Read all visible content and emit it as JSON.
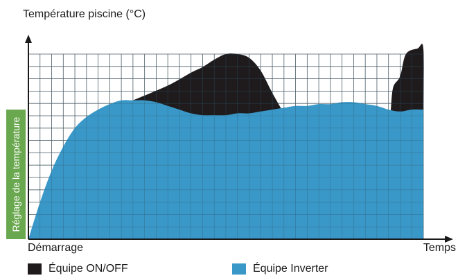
{
  "chart_data": {
    "type": "area",
    "title": "Température piscine (°C)",
    "ylabel": "",
    "xlabel": "Temps",
    "x_start_label": "Démarrage",
    "setpoint_label": "Réglage de la température",
    "grid": true,
    "legend_placement": "bottom",
    "series": [
      {
        "name": "Équipe ON/OFF",
        "color": "#1f1b1c",
        "segments": [
          [
            [
              9,
              0.75
            ],
            [
              12,
              0.83
            ],
            [
              14,
              0.9
            ],
            [
              15,
              0.93
            ],
            [
              16,
              0.97
            ],
            [
              17,
              1.0
            ],
            [
              18,
              1.0
            ],
            [
              19,
              0.98
            ],
            [
              20,
              0.91
            ],
            [
              21,
              0.79
            ],
            [
              22,
              0.68
            ]
          ],
          [
            [
              31.2,
              0.7
            ],
            [
              31.4,
              0.82
            ],
            [
              32,
              0.88
            ],
            [
              32.5,
              1.0
            ],
            [
              33.5,
              1.03
            ],
            [
              34,
              1.03
            ],
            [
              34,
              0.7
            ]
          ]
        ]
      },
      {
        "name": "Équipe Inverter",
        "color": "#3a98c8",
        "points": [
          [
            0,
            0
          ],
          [
            1,
            0.2
          ],
          [
            2,
            0.37
          ],
          [
            3,
            0.5
          ],
          [
            4,
            0.6
          ],
          [
            5,
            0.66
          ],
          [
            6,
            0.7
          ],
          [
            7,
            0.73
          ],
          [
            8,
            0.75
          ],
          [
            9,
            0.75
          ],
          [
            10,
            0.75
          ],
          [
            11,
            0.74
          ],
          [
            12,
            0.72
          ],
          [
            13,
            0.7
          ],
          [
            14,
            0.68
          ],
          [
            15,
            0.67
          ],
          [
            16,
            0.67
          ],
          [
            17,
            0.67
          ],
          [
            18,
            0.68
          ],
          [
            19,
            0.68
          ],
          [
            20,
            0.69
          ],
          [
            21,
            0.7
          ],
          [
            22,
            0.71
          ],
          [
            23,
            0.72
          ],
          [
            24,
            0.72
          ],
          [
            25,
            0.73
          ],
          [
            26,
            0.73
          ],
          [
            27,
            0.74
          ],
          [
            28,
            0.74
          ],
          [
            29,
            0.73
          ],
          [
            30,
            0.72
          ],
          [
            31,
            0.7
          ],
          [
            32,
            0.69
          ],
          [
            33,
            0.7
          ],
          [
            34,
            0.7
          ]
        ]
      }
    ],
    "setpoint": 0.7,
    "grid_cols": 34,
    "grid_rows": 15,
    "ymax": 1.06
  },
  "legend": {
    "onoff": "Équipe ON/OFF",
    "inverter": "Équipe Inverter"
  }
}
